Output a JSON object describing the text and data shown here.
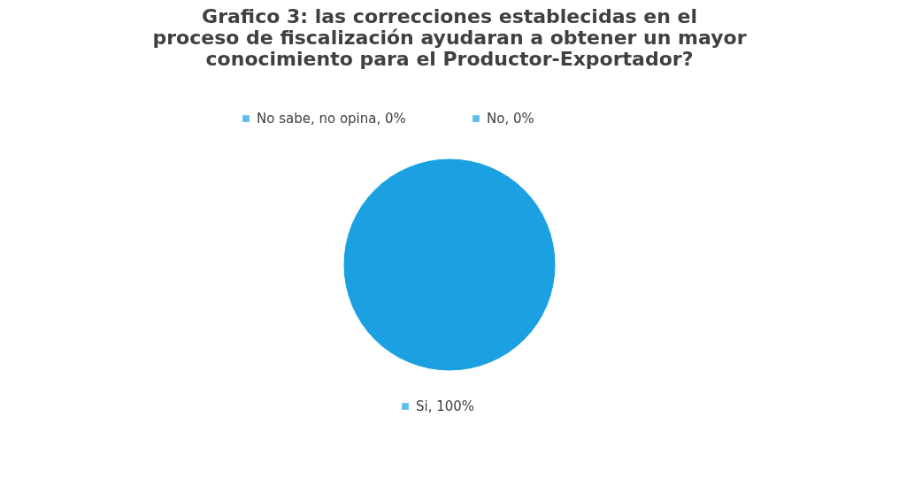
{
  "chart_data": {
    "type": "pie",
    "title": "Grafico 3: las correcciones establecidas en el proceso de fiscalización ayudaran a obtener un mayor conocimiento para el Productor-Exportador?",
    "categories": [
      "No sabe, no opina",
      "No",
      "Si"
    ],
    "values": [
      0,
      0,
      100
    ],
    "colors": [
      "#1ba1e2",
      "#1ba1e2",
      "#1ba1e2"
    ],
    "data_labels": true,
    "value_labels": [
      ", 0%",
      ", 0%",
      ", 100%"
    ],
    "legend": "top"
  }
}
